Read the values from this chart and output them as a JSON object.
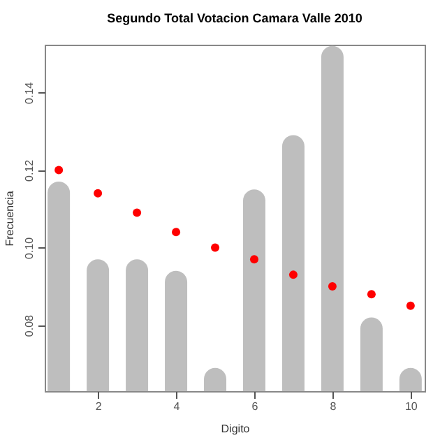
{
  "chart_data": {
    "type": "bar",
    "title": "Segundo Total Votacion Camara Valle 2010",
    "xlabel": "Digito",
    "ylabel": "Frecuencia",
    "x": [
      1,
      2,
      3,
      4,
      5,
      6,
      7,
      8,
      9,
      10
    ],
    "series": [
      {
        "color": "#bebebe",
        "values": [
          0.117,
          0.097,
          0.097,
          0.094,
          0.069,
          0.115,
          0.129,
          0.152,
          0.082,
          0.069
        ]
      },
      {
        "type": "scatter",
        "color": "#ff0000",
        "values": [
          0.12,
          0.114,
          0.109,
          0.104,
          0.1,
          0.097,
          0.093,
          0.09,
          0.088,
          0.085
        ]
      }
    ],
    "xlim": [
      0.64,
      10.36
    ],
    "xticks": [
      2,
      4,
      6,
      8,
      10
    ],
    "ylim": [
      0.063,
      0.1523
    ],
    "yticks": [
      {
        "value": 0.08,
        "label": "0.08"
      },
      {
        "value": 0.1,
        "label": "0.10"
      },
      {
        "value": 0.12,
        "label": "0.12"
      },
      {
        "value": 0.14,
        "label": "0.14"
      }
    ],
    "grid": false,
    "marker": "circle"
  }
}
